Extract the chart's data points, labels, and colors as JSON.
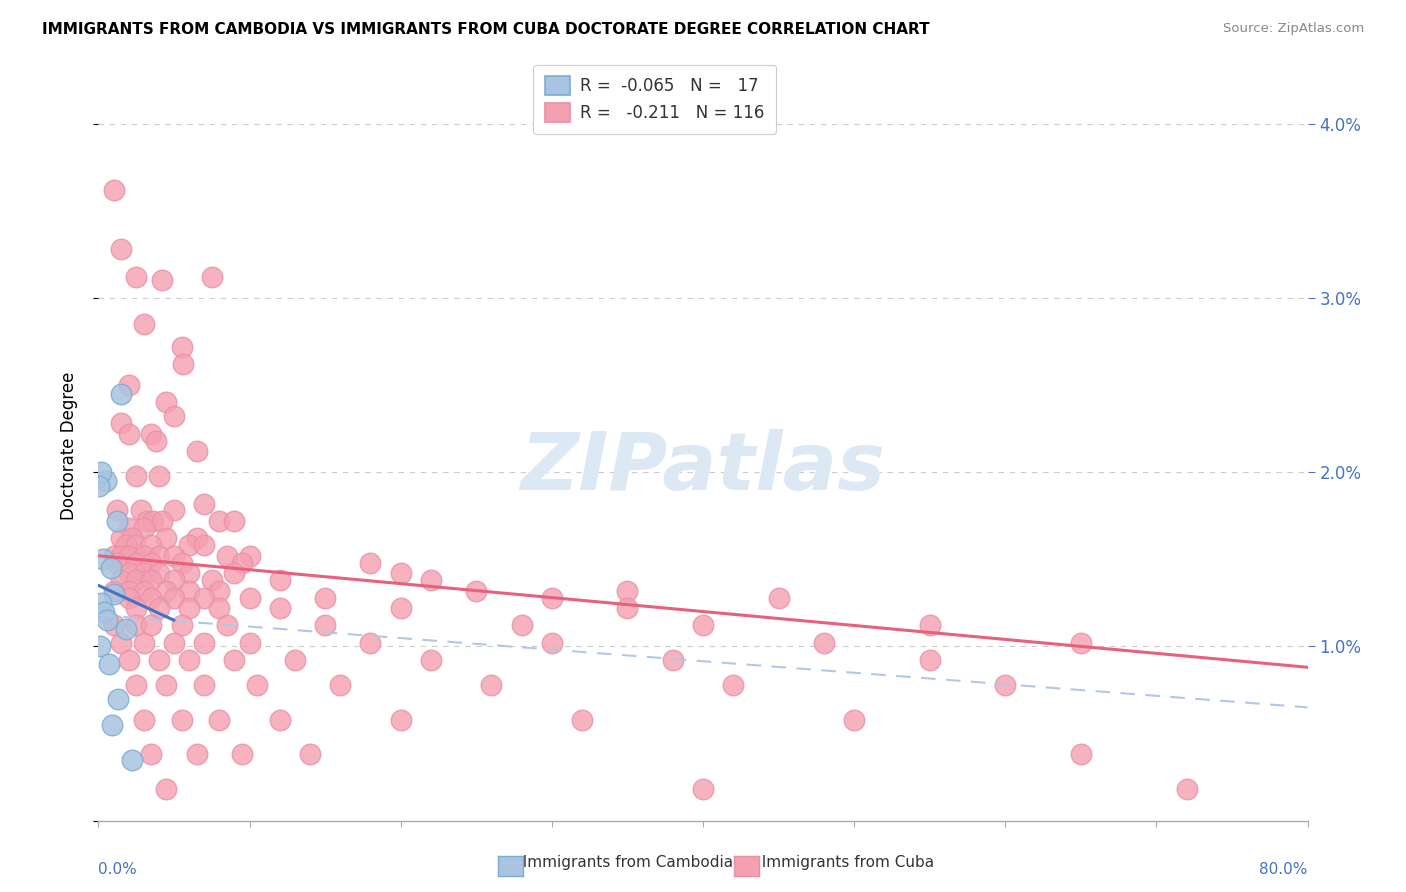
{
  "title": "IMMIGRANTS FROM CAMBODIA VS IMMIGRANTS FROM CUBA DOCTORATE DEGREE CORRELATION CHART",
  "source": "Source: ZipAtlas.com",
  "ylabel": "Doctorate Degree",
  "xlim": [
    0.0,
    80.0
  ],
  "ylim": [
    0.0,
    4.3
  ],
  "cambodia_color": "#a8c4e0",
  "cuba_color": "#f4a0b0",
  "cambodia_line_color": "#4472c4",
  "cuba_line_color": "#e8607a",
  "cambodia_line": [
    [
      0.0,
      1.35
    ],
    [
      5.0,
      1.15
    ]
  ],
  "cuba_line": [
    [
      0.0,
      1.52
    ],
    [
      80.0,
      0.88
    ]
  ],
  "dashed_line": [
    [
      0.0,
      1.18
    ],
    [
      80.0,
      0.65
    ]
  ],
  "dashed_line_color": "#b0c8e8",
  "cambodia_points": [
    [
      0.5,
      1.95
    ],
    [
      1.2,
      1.72
    ],
    [
      1.5,
      2.45
    ],
    [
      0.3,
      1.5
    ],
    [
      0.8,
      1.45
    ],
    [
      1.0,
      1.3
    ],
    [
      0.2,
      1.25
    ],
    [
      0.4,
      1.2
    ],
    [
      0.6,
      1.15
    ],
    [
      1.8,
      1.1
    ],
    [
      0.1,
      1.0
    ],
    [
      0.7,
      0.9
    ],
    [
      1.3,
      0.7
    ],
    [
      0.9,
      0.55
    ],
    [
      2.2,
      0.35
    ],
    [
      0.15,
      2.0
    ],
    [
      0.05,
      1.92
    ]
  ],
  "cuba_points": [
    [
      1.0,
      3.62
    ],
    [
      1.5,
      3.28
    ],
    [
      2.5,
      3.12
    ],
    [
      4.2,
      3.1
    ],
    [
      7.5,
      3.12
    ],
    [
      3.0,
      2.85
    ],
    [
      5.5,
      2.72
    ],
    [
      5.6,
      2.62
    ],
    [
      2.0,
      2.5
    ],
    [
      4.5,
      2.4
    ],
    [
      5.0,
      2.32
    ],
    [
      1.5,
      2.28
    ],
    [
      2.0,
      2.22
    ],
    [
      3.5,
      2.22
    ],
    [
      3.8,
      2.18
    ],
    [
      6.5,
      2.12
    ],
    [
      2.5,
      1.98
    ],
    [
      4.0,
      1.98
    ],
    [
      7.0,
      1.82
    ],
    [
      1.2,
      1.78
    ],
    [
      2.8,
      1.78
    ],
    [
      5.0,
      1.78
    ],
    [
      3.2,
      1.72
    ],
    [
      3.6,
      1.72
    ],
    [
      4.2,
      1.72
    ],
    [
      8.0,
      1.72
    ],
    [
      9.0,
      1.72
    ],
    [
      2.0,
      1.68
    ],
    [
      3.0,
      1.68
    ],
    [
      1.5,
      1.62
    ],
    [
      2.2,
      1.62
    ],
    [
      4.5,
      1.62
    ],
    [
      6.5,
      1.62
    ],
    [
      1.8,
      1.58
    ],
    [
      2.5,
      1.58
    ],
    [
      3.5,
      1.58
    ],
    [
      6.0,
      1.58
    ],
    [
      7.0,
      1.58
    ],
    [
      1.0,
      1.52
    ],
    [
      1.5,
      1.52
    ],
    [
      2.0,
      1.52
    ],
    [
      3.0,
      1.52
    ],
    [
      4.0,
      1.52
    ],
    [
      5.0,
      1.52
    ],
    [
      8.5,
      1.52
    ],
    [
      10.0,
      1.52
    ],
    [
      1.2,
      1.48
    ],
    [
      2.5,
      1.48
    ],
    [
      3.5,
      1.48
    ],
    [
      5.5,
      1.48
    ],
    [
      9.5,
      1.48
    ],
    [
      18.0,
      1.48
    ],
    [
      2.0,
      1.42
    ],
    [
      3.0,
      1.42
    ],
    [
      4.0,
      1.42
    ],
    [
      6.0,
      1.42
    ],
    [
      9.0,
      1.42
    ],
    [
      20.0,
      1.42
    ],
    [
      1.5,
      1.38
    ],
    [
      2.5,
      1.38
    ],
    [
      3.5,
      1.38
    ],
    [
      5.0,
      1.38
    ],
    [
      7.5,
      1.38
    ],
    [
      12.0,
      1.38
    ],
    [
      22.0,
      1.38
    ],
    [
      1.0,
      1.32
    ],
    [
      2.0,
      1.32
    ],
    [
      3.0,
      1.32
    ],
    [
      4.5,
      1.32
    ],
    [
      6.0,
      1.32
    ],
    [
      8.0,
      1.32
    ],
    [
      25.0,
      1.32
    ],
    [
      35.0,
      1.32
    ],
    [
      2.0,
      1.28
    ],
    [
      3.5,
      1.28
    ],
    [
      5.0,
      1.28
    ],
    [
      7.0,
      1.28
    ],
    [
      10.0,
      1.28
    ],
    [
      15.0,
      1.28
    ],
    [
      30.0,
      1.28
    ],
    [
      45.0,
      1.28
    ],
    [
      2.5,
      1.22
    ],
    [
      4.0,
      1.22
    ],
    [
      6.0,
      1.22
    ],
    [
      8.0,
      1.22
    ],
    [
      12.0,
      1.22
    ],
    [
      20.0,
      1.22
    ],
    [
      35.0,
      1.22
    ],
    [
      1.0,
      1.12
    ],
    [
      2.5,
      1.12
    ],
    [
      3.5,
      1.12
    ],
    [
      5.5,
      1.12
    ],
    [
      8.5,
      1.12
    ],
    [
      15.0,
      1.12
    ],
    [
      28.0,
      1.12
    ],
    [
      40.0,
      1.12
    ],
    [
      55.0,
      1.12
    ],
    [
      1.5,
      1.02
    ],
    [
      3.0,
      1.02
    ],
    [
      5.0,
      1.02
    ],
    [
      7.0,
      1.02
    ],
    [
      10.0,
      1.02
    ],
    [
      18.0,
      1.02
    ],
    [
      30.0,
      1.02
    ],
    [
      48.0,
      1.02
    ],
    [
      65.0,
      1.02
    ],
    [
      2.0,
      0.92
    ],
    [
      4.0,
      0.92
    ],
    [
      6.0,
      0.92
    ],
    [
      9.0,
      0.92
    ],
    [
      13.0,
      0.92
    ],
    [
      22.0,
      0.92
    ],
    [
      38.0,
      0.92
    ],
    [
      55.0,
      0.92
    ],
    [
      2.5,
      0.78
    ],
    [
      4.5,
      0.78
    ],
    [
      7.0,
      0.78
    ],
    [
      10.5,
      0.78
    ],
    [
      16.0,
      0.78
    ],
    [
      26.0,
      0.78
    ],
    [
      42.0,
      0.78
    ],
    [
      60.0,
      0.78
    ],
    [
      3.0,
      0.58
    ],
    [
      5.5,
      0.58
    ],
    [
      8.0,
      0.58
    ],
    [
      12.0,
      0.58
    ],
    [
      20.0,
      0.58
    ],
    [
      32.0,
      0.58
    ],
    [
      50.0,
      0.58
    ],
    [
      3.5,
      0.38
    ],
    [
      6.5,
      0.38
    ],
    [
      9.5,
      0.38
    ],
    [
      14.0,
      0.38
    ],
    [
      65.0,
      0.38
    ],
    [
      4.5,
      0.18
    ],
    [
      40.0,
      0.18
    ],
    [
      72.0,
      0.18
    ]
  ]
}
